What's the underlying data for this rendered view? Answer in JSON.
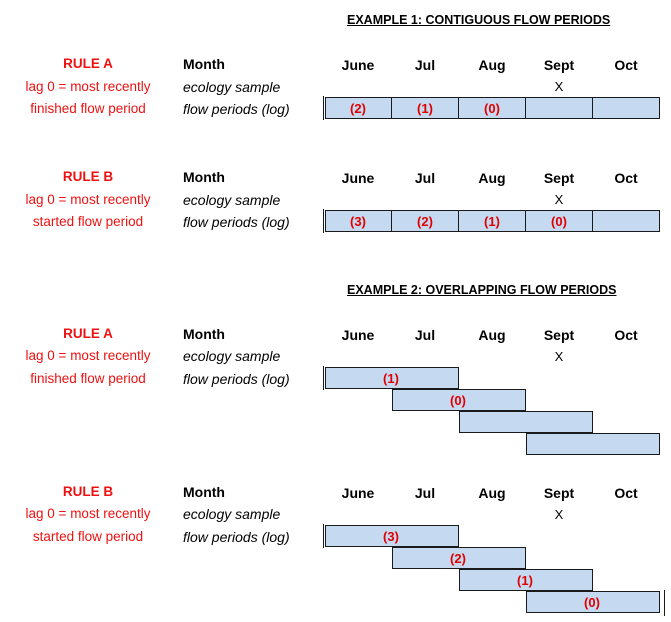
{
  "example1": {
    "title": "EXAMPLE 1: CONTIGUOUS FLOW PERIODS",
    "blocks": [
      {
        "rule_title": "RULE A",
        "rule_line1": "lag 0 = most recently",
        "rule_line2": "finished flow period",
        "month_label": "Month",
        "ecology_label": "ecology sample",
        "flow_label": "flow periods (log)",
        "months": [
          "June",
          "Jul",
          "Aug",
          "Sept",
          "Oct"
        ],
        "x_mark": "X",
        "lags": [
          "(2)",
          "(1)",
          "(0)",
          "",
          ""
        ]
      },
      {
        "rule_title": "RULE B",
        "rule_line1": "lag 0 = most recently",
        "rule_line2": "started flow period",
        "month_label": "Month",
        "ecology_label": "ecology sample",
        "flow_label": "flow periods (log)",
        "months": [
          "June",
          "Jul",
          "Aug",
          "Sept",
          "Oct"
        ],
        "x_mark": "X",
        "lags": [
          "(3)",
          "(2)",
          "(1)",
          "(0)",
          ""
        ]
      }
    ]
  },
  "example2": {
    "title": "EXAMPLE 2: OVERLAPPING FLOW PERIODS",
    "blocks": [
      {
        "rule_title": "RULE A",
        "rule_line1": "lag 0 = most recently",
        "rule_line2": "finished flow period",
        "month_label": "Month",
        "ecology_label": "ecology sample",
        "flow_label": "flow periods (log)",
        "months": [
          "June",
          "Jul",
          "Aug",
          "Sept",
          "Oct"
        ],
        "x_mark": "X",
        "lags": [
          "(1)",
          "(0)",
          "",
          ""
        ]
      },
      {
        "rule_title": "RULE B",
        "rule_line1": "lag 0 = most recently",
        "rule_line2": "started flow period",
        "month_label": "Month",
        "ecology_label": "ecology sample",
        "flow_label": "flow periods (log)",
        "months": [
          "June",
          "Jul",
          "Aug",
          "Sept",
          "Oct"
        ],
        "x_mark": "X",
        "lags": [
          "(3)",
          "(2)",
          "(1)",
          "(0)"
        ]
      }
    ]
  },
  "colors": {
    "rule_text": "#ee1111",
    "lag_text": "#e00000",
    "bar_fill": "#c5d9f0",
    "bar_border": "#1a1a1a"
  }
}
